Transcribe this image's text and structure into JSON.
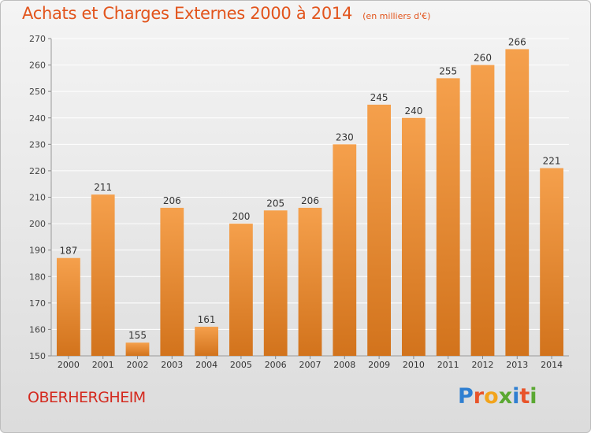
{
  "chart_data": {
    "type": "bar",
    "title": "Achats et Charges Externes 2000 à 2014",
    "subtitle": "(en milliers d'€)",
    "xlabel": "",
    "ylabel": "",
    "categories": [
      "2000",
      "2001",
      "2002",
      "2003",
      "2004",
      "2005",
      "2006",
      "2007",
      "2008",
      "2009",
      "2010",
      "2011",
      "2012",
      "2013",
      "2014"
    ],
    "values": [
      187,
      211,
      155,
      206,
      161,
      200,
      205,
      206,
      230,
      245,
      240,
      255,
      260,
      266,
      221
    ],
    "ylim": [
      150,
      270
    ],
    "yticks": [
      150,
      160,
      170,
      180,
      190,
      200,
      210,
      220,
      230,
      240,
      250,
      260,
      270
    ],
    "grid": true,
    "legend": "none",
    "colors": {
      "bar_top": "#f5a04c",
      "bar_bottom": "#d2731c",
      "title": "#e2541c"
    }
  },
  "footer": {
    "commune": "OBERHERGHEIM",
    "logo_text": "Proxiti",
    "logo_letters": [
      {
        "ch": "P",
        "color": "#2f7fd1"
      },
      {
        "ch": "r",
        "color": "#e8542a"
      },
      {
        "ch": "o",
        "color": "#f2a41c"
      },
      {
        "ch": "x",
        "color": "#5aa832"
      },
      {
        "ch": "i",
        "color": "#2f7fd1"
      },
      {
        "ch": "t",
        "color": "#e8542a"
      },
      {
        "ch": "i",
        "color": "#5aa832"
      }
    ]
  }
}
